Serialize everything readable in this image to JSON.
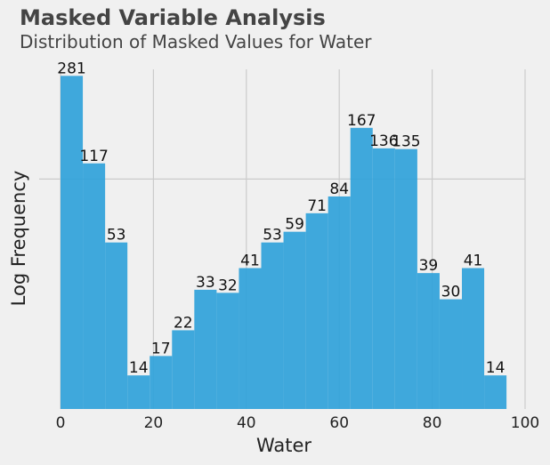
{
  "title": "Masked Variable Analysis",
  "subtitle": "Distribution of Masked Values for Water",
  "chart_data": {
    "type": "bar",
    "title": "Masked Variable Analysis",
    "subtitle": "Distribution of Masked Values for Water",
    "xlabel": "Water",
    "ylabel": "Log Frequency",
    "bin_width": 4.8,
    "x_start": 0,
    "bins": [
      0,
      4.8,
      9.6,
      14.4,
      19.2,
      24,
      28.8,
      33.6,
      38.4,
      43.2,
      48,
      52.8,
      57.6,
      62.4,
      67.2,
      72,
      76.8,
      81.6,
      86.4,
      91.2
    ],
    "values": [
      281,
      117,
      53,
      14,
      17,
      22,
      33,
      32,
      41,
      53,
      59,
      71,
      84,
      167,
      136,
      135,
      39,
      30,
      41,
      14
    ],
    "labels": [
      "281",
      "117",
      "53",
      "14",
      "17",
      "22",
      "33",
      "32",
      "41",
      "53",
      "59",
      "71",
      "84",
      "167",
      "136",
      "135",
      "39",
      "30",
      "41",
      "14"
    ],
    "xlim": [
      0,
      100
    ],
    "xticks": [
      0,
      20,
      40,
      60,
      80,
      100
    ],
    "xtick_labels": [
      "0",
      "20",
      "40",
      "60",
      "80",
      "100"
    ],
    "ylim_log": [
      10,
      300
    ],
    "yscale": "log",
    "grid": true,
    "bar_color": "#30a2da"
  }
}
